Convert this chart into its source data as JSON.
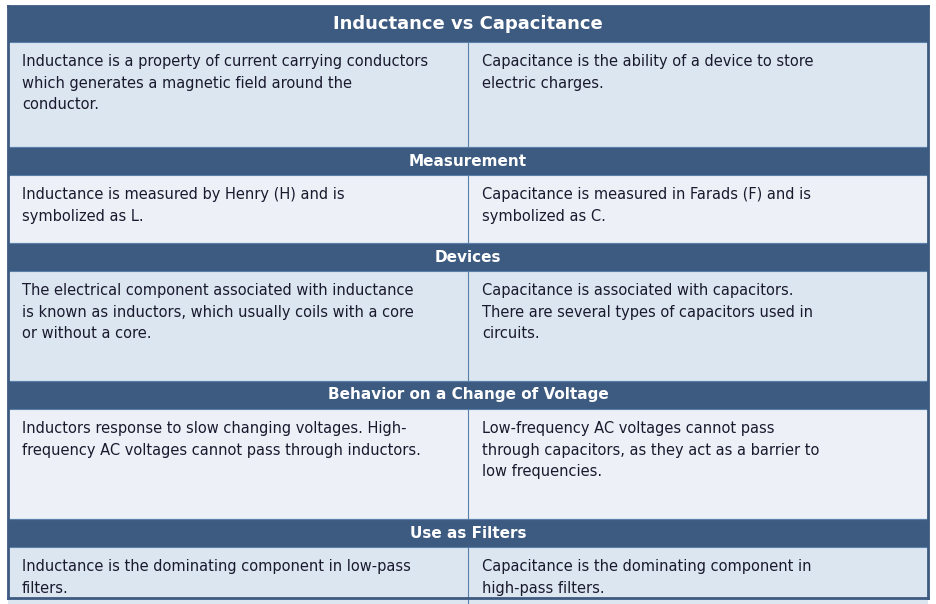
{
  "title": "Inductance vs Capacitance",
  "header_bg": "#3d5a80",
  "header_text_color": "#ffffff",
  "row_bg_odd": "#dce6f1",
  "row_bg_even": "#edf1f7",
  "cell_text_color": "#1a1a2e",
  "border_color": "#5a7fa8",
  "outer_border_color": "#3d5a80",
  "sections": [
    {
      "header": null,
      "left": "Inductance is a property of current carrying conductors\nwhich generates a magnetic field around the\nconductor.",
      "right": "Capacitance is the ability of a device to store\nelectric charges."
    },
    {
      "header": "Measurement",
      "left": "Inductance is measured by Henry (H) and is\nsymbolized as L.",
      "right": "Capacitance is measured in Farads (F) and is\nsymbolized as C."
    },
    {
      "header": "Devices",
      "left": "The electrical component associated with inductance\nis known as inductors, which usually coils with a core\nor without a core.",
      "right": "Capacitance is associated with capacitors.\nThere are several types of capacitors used in\ncircuits."
    },
    {
      "header": "Behavior on a Change of Voltage",
      "left": "Inductors response to slow changing voltages. High-\nfrequency AC voltages cannot pass through inductors.",
      "right": "Low-frequency AC voltages cannot pass\nthrough capacitors, as they act as a barrier to\nlow frequencies."
    },
    {
      "header": "Use as Filters",
      "left": "Inductance is the dominating component in low-pass\nfilters.",
      "right": "Capacitance is the dominating component in\nhigh-pass filters."
    }
  ],
  "figsize": [
    9.36,
    6.04
  ],
  "dpi": 100
}
